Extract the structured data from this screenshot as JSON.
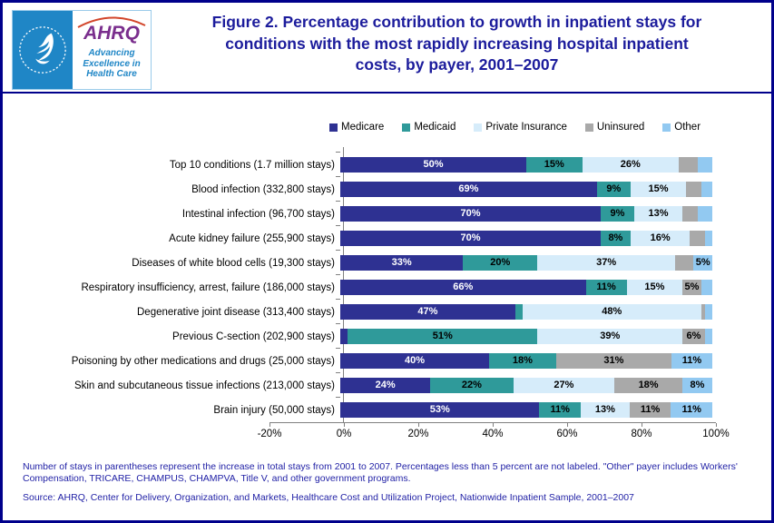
{
  "header": {
    "title": "Figure 2. Percentage contribution to growth in inpatient stays for conditions with the most rapidly increasing hospital inpatient costs, by payer, 2001–2007",
    "logo": {
      "org_abbr": "AHRQ",
      "tagline": "Advancing Excellence in Health Care"
    }
  },
  "chart_data": {
    "type": "bar",
    "orientation": "horizontal-stacked",
    "title": "Figure 2. Percentage contribution to growth in inpatient stays for conditions with the most rapidly increasing hospital inpatient costs, by payer, 2001–2007",
    "xlim": [
      -20,
      100
    ],
    "x_tick_labels": [
      "-20%",
      "0%",
      "20%",
      "40%",
      "60%",
      "80%",
      "100%"
    ],
    "legend_position": "top",
    "grid": false,
    "categories": [
      "Top 10 conditions (1.7 million stays)",
      "Blood infection (332,800 stays)",
      "Intestinal infection (96,700 stays)",
      "Acute kidney failure (255,900 stays)",
      "Diseases of white blood cells (19,300 stays)",
      "Respiratory insufficiency, arrest, failure (186,000 stays)",
      "Degenerative joint disease (313,400 stays)",
      "Previous C-section (202,900 stays)",
      "Poisoning by other medications and drugs (25,000 stays)",
      "Skin and subcutaneous tissue infections (213,000 stays)",
      "Brain injury (50,000 stays)"
    ],
    "series": [
      {
        "name": "Medicare",
        "color": "#2E3192",
        "label_color": "#FFFFFF",
        "values": [
          50,
          69,
          70,
          70,
          33,
          66,
          47,
          2,
          40,
          24,
          53
        ],
        "labels": [
          "50%",
          "69%",
          "70%",
          "70%",
          "33%",
          "66%",
          "47%",
          "",
          "40%",
          "24%",
          "53%"
        ]
      },
      {
        "name": "Medicaid",
        "color": "#2F9A9A",
        "label_color": "#000000",
        "values": [
          15,
          9,
          9,
          8,
          20,
          11,
          2,
          51,
          18,
          22,
          11
        ],
        "labels": [
          "15%",
          "9%",
          "9%",
          "8%",
          "20%",
          "11%",
          "",
          "51%",
          "18%",
          "22%",
          "11%"
        ]
      },
      {
        "name": "Private Insurance",
        "color": "#D6ECFA",
        "label_color": "#000000",
        "values": [
          26,
          15,
          13,
          16,
          37,
          15,
          48,
          39,
          0,
          27,
          13
        ],
        "labels": [
          "26%",
          "15%",
          "13%",
          "16%",
          "37%",
          "15%",
          "48%",
          "39%",
          "",
          "27%",
          "13%"
        ]
      },
      {
        "name": "Uninsured",
        "color": "#A9A9A9",
        "label_color": "#000000",
        "values": [
          5,
          4,
          4,
          4,
          5,
          5,
          1,
          6,
          31,
          18,
          11
        ],
        "labels": [
          "",
          "",
          "",
          "",
          "",
          "5%",
          "",
          "6%",
          "31%",
          "18%",
          "11%"
        ]
      },
      {
        "name": "Other",
        "color": "#92C9F1",
        "label_color": "#000000",
        "values": [
          4,
          3,
          4,
          2,
          5,
          3,
          2,
          2,
          11,
          8,
          11
        ],
        "labels": [
          "",
          "",
          "",
          "",
          "5%",
          "",
          "",
          "",
          "11%",
          "8%",
          "11%"
        ]
      }
    ]
  },
  "footnotes": {
    "note": "Number of stays in parentheses  represent the increase in total stays from 2001 to 2007. Percentages less than 5 percent are not labeled.  \"Other\" payer includes Workers' Compensation, TRICARE, CHAMPUS, CHAMPVA, Title V, and other government programs.",
    "source": "Source: AHRQ, Center for Delivery, Organization, and Markets, Healthcare Cost and Utilization Project, Nationwide Inpatient Sample, 2001–2007"
  }
}
